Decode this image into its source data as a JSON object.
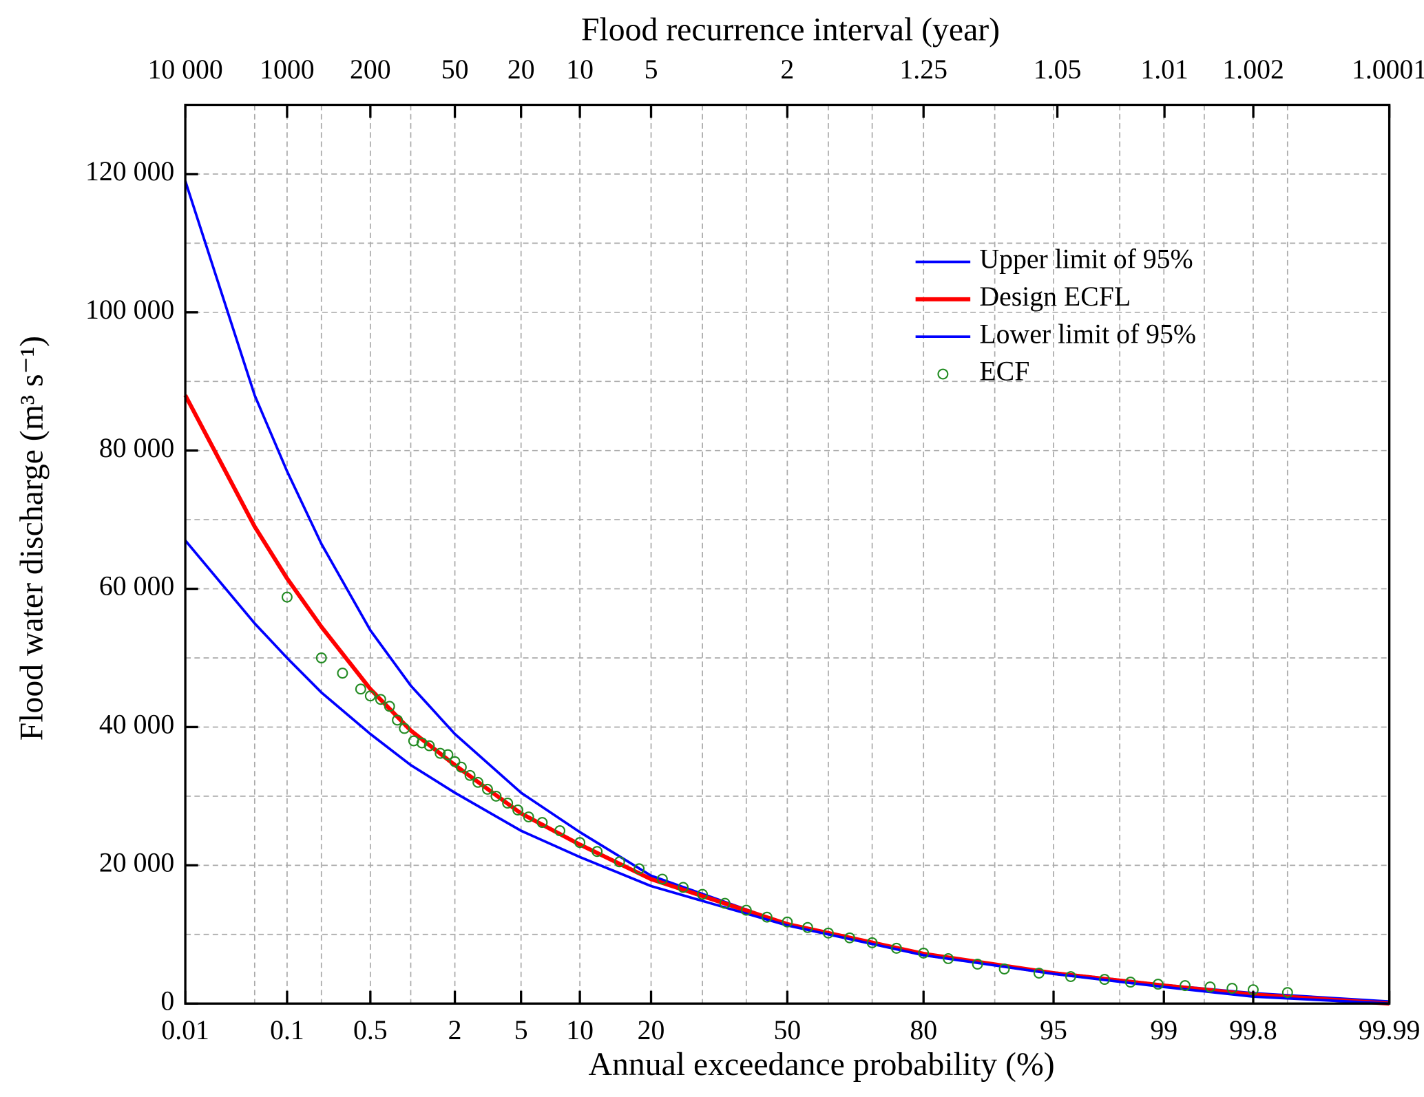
{
  "chart_data": {
    "type": "line",
    "xlabel": "Annual exceedance probability (%)",
    "x2label": "Flood recurrence interval (year)",
    "ylabel": "Flood water discharge (m³ s⁻¹)",
    "xscale": "probability",
    "xlim": [
      0.01,
      99.99
    ],
    "xticks": [
      0.01,
      0.1,
      0.5,
      2,
      5,
      10,
      20,
      50,
      80,
      95,
      99,
      99.8,
      99.99
    ],
    "xgrid_minor": [
      0.05,
      0.2,
      1,
      30,
      40,
      60,
      70,
      90,
      98,
      99.5,
      99.9
    ],
    "x2ticks": [
      {
        "value": 10000,
        "label": "10 000"
      },
      1000,
      200,
      50,
      20,
      10,
      5,
      2,
      1.25,
      1.05,
      1.01,
      1.002,
      1.0001
    ],
    "ylim": [
      0,
      130000
    ],
    "yticks": [
      0,
      {
        "value": 20000,
        "label": "20 000"
      },
      {
        "value": 40000,
        "label": "40 000"
      },
      {
        "value": 60000,
        "label": "60 000"
      },
      {
        "value": 80000,
        "label": "80 000"
      },
      {
        "value": 100000,
        "label": "100 000"
      },
      {
        "value": 120000,
        "label": "120 000"
      }
    ],
    "ygrid_minor": [
      10000,
      30000,
      50000,
      70000,
      90000,
      110000
    ],
    "grid": true,
    "legend": "upper right",
    "series": [
      {
        "name": "Upper limit of 95%",
        "type": "line",
        "color": "#0000ff",
        "x": [
          0.01,
          0.05,
          0.1,
          0.2,
          0.5,
          1,
          2,
          5,
          10,
          20,
          50,
          80,
          95,
          99,
          99.8,
          99.99
        ],
        "values": [
          119000,
          88000,
          77000,
          66500,
          54000,
          46000,
          39000,
          30500,
          24800,
          18500,
          11500,
          7000,
          4500,
          2700,
          1500,
          300
        ]
      },
      {
        "name": "Design ECFL",
        "type": "line",
        "color": "#ff0000",
        "x": [
          0.01,
          0.05,
          0.1,
          0.2,
          0.5,
          1,
          2,
          5,
          10,
          20,
          50,
          80,
          95,
          99,
          99.8,
          99.99
        ],
        "values": [
          88000,
          69000,
          61500,
          54500,
          45500,
          39500,
          34500,
          27500,
          23000,
          18000,
          11500,
          7200,
          4400,
          2600,
          1300,
          0
        ]
      },
      {
        "name": "Lower limit of 95%",
        "type": "line",
        "color": "#0000ff",
        "x": [
          0.01,
          0.05,
          0.1,
          0.2,
          0.5,
          1,
          2,
          5,
          10,
          20,
          50,
          80,
          95,
          99,
          99.8,
          99.99
        ],
        "values": [
          67000,
          55000,
          50000,
          45000,
          39000,
          34500,
          30500,
          25000,
          21200,
          17000,
          11300,
          7000,
          4300,
          2400,
          1000,
          0
        ]
      },
      {
        "name": "ECF",
        "type": "scatter",
        "color": "#228b22",
        "x": [
          0.1,
          0.2,
          0.3,
          0.42,
          0.5,
          0.6,
          0.7,
          0.8,
          0.9,
          1.05,
          1.2,
          1.35,
          1.6,
          1.8,
          2,
          2.2,
          2.5,
          2.8,
          3.2,
          3.6,
          4.2,
          4.8,
          5.5,
          6.5,
          8,
          10,
          12,
          15,
          18,
          22,
          26,
          30,
          35,
          40,
          45,
          50,
          55,
          60,
          65,
          70,
          75,
          80,
          84,
          88,
          91,
          94,
          96,
          97.5,
          98.3,
          98.9,
          99.3,
          99.55,
          99.7,
          99.8,
          99.9
        ],
        "values": [
          58800,
          50000,
          47800,
          45500,
          44500,
          44000,
          43000,
          41000,
          39800,
          38000,
          37700,
          37300,
          36200,
          36000,
          35000,
          34200,
          33000,
          32000,
          31000,
          30000,
          29000,
          28000,
          27000,
          26200,
          25000,
          23300,
          22000,
          20500,
          19500,
          18000,
          16800,
          15800,
          14500,
          13500,
          12500,
          11800,
          11000,
          10200,
          9500,
          8800,
          8000,
          7300,
          6500,
          5700,
          5000,
          4400,
          3900,
          3500,
          3100,
          2800,
          2600,
          2400,
          2200,
          2000,
          1600
        ]
      }
    ]
  }
}
